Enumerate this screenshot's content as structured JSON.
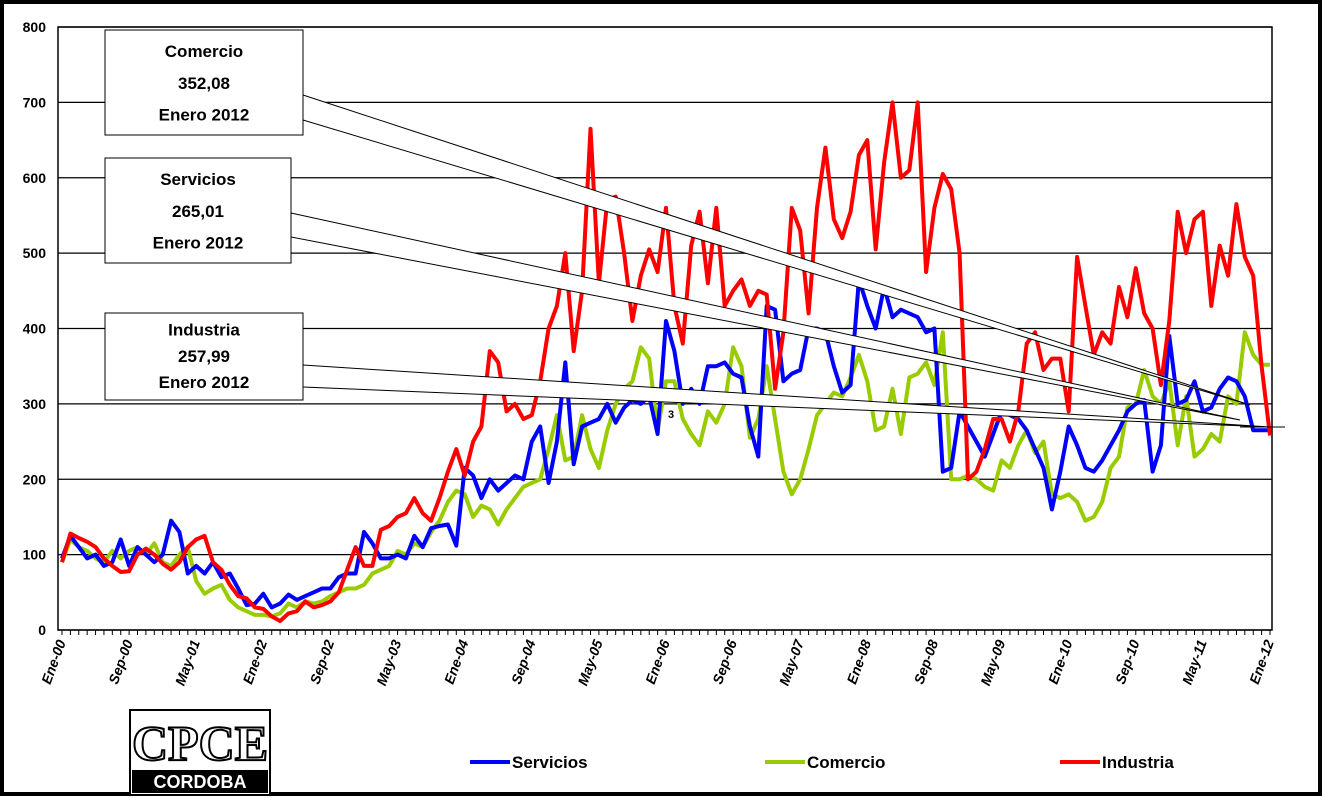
{
  "chart_data": {
    "type": "line",
    "categories": [
      "Ene-00",
      null,
      null,
      null,
      null,
      null,
      null,
      null,
      "Sep-00",
      null,
      null,
      null,
      null,
      null,
      null,
      null,
      "May-01",
      null,
      null,
      null,
      null,
      null,
      null,
      null,
      "Ene-02",
      null,
      null,
      null,
      null,
      null,
      null,
      null,
      "Sep-02",
      null,
      null,
      null,
      null,
      null,
      null,
      null,
      "May-03",
      null,
      null,
      null,
      null,
      null,
      null,
      null,
      "Ene-04",
      null,
      null,
      null,
      null,
      null,
      null,
      null,
      "Sep-04",
      null,
      null,
      null,
      null,
      null,
      null,
      null,
      "May-05",
      null,
      null,
      null,
      null,
      null,
      null,
      null,
      "Ene-06",
      null,
      null,
      null,
      null,
      null,
      null,
      null,
      "Sep-06",
      null,
      null,
      null,
      null,
      null,
      null,
      null,
      "May-07",
      null,
      null,
      null,
      null,
      null,
      null,
      null,
      "Ene-08",
      null,
      null,
      null,
      null,
      null,
      null,
      null,
      "Sep-08",
      null,
      null,
      null,
      null,
      null,
      null,
      null,
      "May-09",
      null,
      null,
      null,
      null,
      null,
      null,
      null,
      "Ene-10",
      null,
      null,
      null,
      null,
      null,
      null,
      null,
      "Sep-10",
      null,
      null,
      null,
      null,
      null,
      null,
      null,
      "May-11",
      null,
      null,
      null,
      null,
      null,
      null,
      null,
      "Ene-12"
    ],
    "series": [
      {
        "name": "Servicios",
        "color": "#0000ff",
        "values": [
          95,
          125,
          110,
          95,
          100,
          85,
          90,
          120,
          85,
          110,
          100,
          90,
          100,
          145,
          130,
          75,
          85,
          75,
          90,
          70,
          75,
          55,
          33,
          35,
          48,
          30,
          35,
          47,
          40,
          45,
          50,
          55,
          55,
          70,
          75,
          75,
          130,
          115,
          95,
          95,
          100,
          95,
          125,
          110,
          135,
          138,
          140,
          112,
          215,
          205,
          175,
          200,
          185,
          195,
          205,
          200,
          250,
          270,
          195,
          250,
          355,
          220,
          270,
          275,
          280,
          300,
          275,
          295,
          305,
          300,
          310,
          260,
          410,
          370,
          300,
          320,
          300,
          350,
          350,
          355,
          340,
          335,
          270,
          230,
          430,
          425,
          330,
          340,
          345,
          400,
          400,
          395,
          350,
          315,
          325,
          465,
          430,
          400,
          455,
          415,
          425,
          420,
          415,
          395,
          400,
          210,
          215,
          290,
          270,
          250,
          230,
          260,
          290,
          285,
          280,
          265,
          240,
          215,
          160,
          210,
          270,
          245,
          215,
          210,
          225,
          245,
          265,
          290,
          300,
          305,
          210,
          245,
          390,
          300,
          305,
          330,
          290,
          295,
          320,
          335,
          330,
          310,
          265,
          265,
          265
        ]
      },
      {
        "name": "Comercio",
        "color": "#99cc00",
        "values": [
          90,
          120,
          110,
          105,
          95,
          90,
          105,
          95,
          105,
          110,
          100,
          115,
          90,
          85,
          100,
          110,
          65,
          48,
          55,
          60,
          40,
          30,
          25,
          20,
          20,
          18,
          22,
          35,
          30,
          38,
          35,
          38,
          45,
          50,
          55,
          55,
          60,
          75,
          80,
          85,
          105,
          100,
          115,
          110,
          130,
          145,
          170,
          185,
          180,
          150,
          165,
          160,
          140,
          160,
          175,
          190,
          195,
          200,
          240,
          285,
          225,
          230,
          285,
          240,
          215,
          265,
          300,
          320,
          330,
          375,
          360,
          265,
          330,
          330,
          280,
          260,
          245,
          290,
          275,
          300,
          375,
          350,
          255,
          280,
          350,
          280,
          210,
          180,
          200,
          240,
          285,
          300,
          315,
          310,
          335,
          365,
          330,
          265,
          270,
          320,
          260,
          335,
          340,
          355,
          325,
          395,
          200,
          200,
          205,
          200,
          190,
          185,
          225,
          215,
          245,
          265,
          235,
          250,
          180,
          175,
          180,
          170,
          145,
          150,
          170,
          215,
          230,
          295,
          300,
          345,
          310,
          300,
          330,
          245,
          310,
          230,
          240,
          260,
          250,
          310,
          300,
          395,
          365,
          352,
          352
        ]
      },
      {
        "name": "Industria",
        "color": "#ff0000",
        "values": [
          90,
          128,
          122,
          117,
          110,
          95,
          85,
          77,
          78,
          100,
          108,
          100,
          88,
          80,
          90,
          110,
          120,
          125,
          90,
          80,
          60,
          45,
          42,
          30,
          28,
          18,
          12,
          22,
          25,
          38,
          30,
          33,
          38,
          50,
          80,
          110,
          85,
          85,
          133,
          138,
          150,
          155,
          175,
          155,
          145,
          175,
          210,
          240,
          205,
          250,
          270,
          370,
          355,
          290,
          300,
          280,
          285,
          330,
          400,
          430,
          500,
          370,
          450,
          665,
          460,
          570,
          575,
          500,
          410,
          470,
          505,
          475,
          560,
          430,
          380,
          510,
          555,
          460,
          560,
          430,
          450,
          465,
          430,
          450,
          445,
          320,
          395,
          560,
          530,
          420,
          560,
          640,
          545,
          520,
          555,
          630,
          650,
          505,
          620,
          700,
          600,
          610,
          700,
          475,
          560,
          605,
          585,
          500,
          200,
          210,
          240,
          280,
          280,
          250,
          290,
          380,
          395,
          345,
          360,
          360,
          290,
          495,
          430,
          365,
          395,
          380,
          455,
          415,
          480,
          420,
          400,
          325,
          410,
          555,
          500,
          545,
          555,
          430,
          510,
          470,
          565,
          495,
          470,
          350,
          258
        ]
      }
    ],
    "ylim": [
      0,
      800
    ],
    "yticks": [
      0,
      100,
      200,
      300,
      400,
      500,
      600,
      700,
      800
    ],
    "grid": true,
    "annotations": [
      {
        "lines": [
          "Comercio",
          "352,08",
          "Enero 2012"
        ]
      },
      {
        "lines": [
          "Servicios",
          "265,01",
          "Enero 2012"
        ]
      },
      {
        "lines": [
          "Industria",
          "257,99",
          "Enero 2012"
        ]
      },
      {
        "lines": [
          "3"
        ]
      }
    ]
  },
  "logo": {
    "title": "CPCE",
    "subtitle": "CORDOBA"
  }
}
